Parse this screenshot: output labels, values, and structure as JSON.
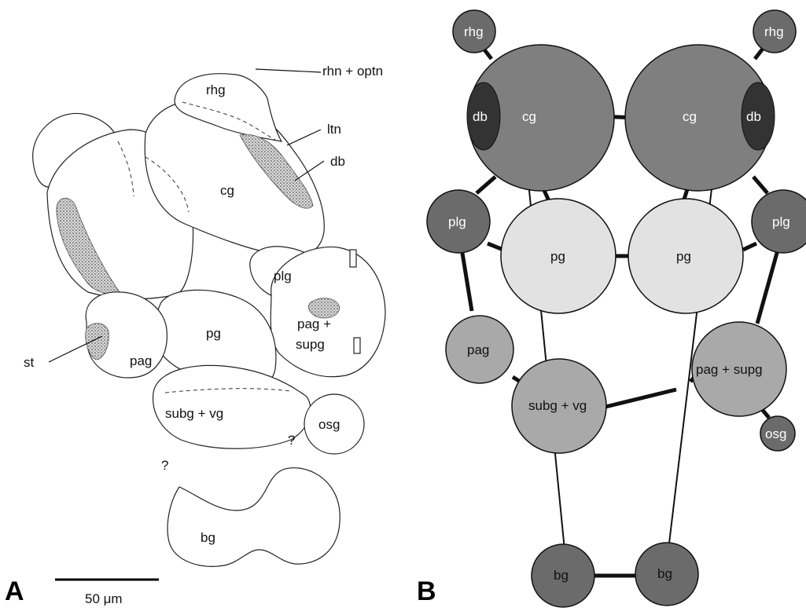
{
  "panelA": {
    "letter": "A",
    "scale_bar": "50 μm",
    "labels": {
      "rhn_optn": "rhn + optn",
      "rhg": "rhg",
      "ltn": "ltn",
      "db": "db",
      "cg": "cg",
      "plg": "plg",
      "pag_supg_1": "pag +",
      "pag_supg_2": "supg",
      "pg": "pg",
      "pag": "pag",
      "st": "st",
      "subg_vg": "subg + vg",
      "osg": "osg",
      "bg": "bg",
      "q1": "?",
      "q2": "?"
    }
  },
  "panelB": {
    "letter": "B",
    "labels": {
      "rhg_left": "rhg",
      "rhg_right": "rhg",
      "cg_left": "cg",
      "cg_right": "cg",
      "db_left": "db",
      "db_right": "db",
      "plg_left": "plg",
      "plg_right": "plg",
      "pg_left": "pg",
      "pg_right": "pg",
      "pag_left": "pag",
      "pag_supg_right": "pag + supg",
      "subg_vg": "subg + vg",
      "osg": "osg",
      "bg_left": "bg",
      "bg_right": "bg"
    },
    "colors": {
      "dark": "#6b6b6b",
      "mid": "#7f7f7f",
      "light": "#e2e2e2",
      "grey": "#a9a9a9",
      "db": "#333333"
    }
  }
}
